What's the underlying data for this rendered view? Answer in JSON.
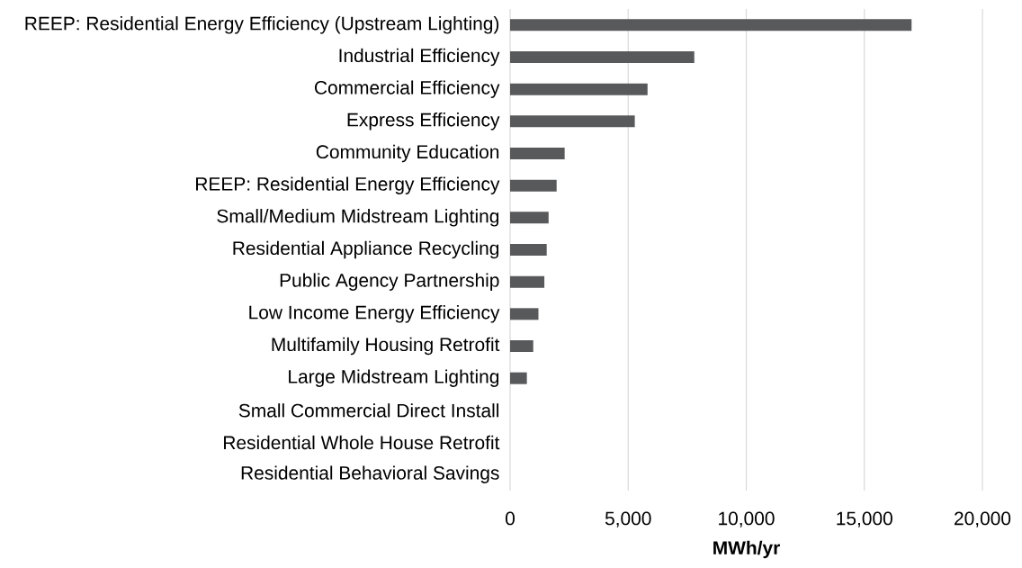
{
  "chart_data": {
    "type": "bar",
    "orientation": "horizontal",
    "xlabel": "MWh/yr",
    "categories": [
      "REEP: Residential Energy Efficiency (Upstream Lighting)",
      "Industrial Efficiency",
      "Commercial Efficiency",
      "Express Efficiency",
      "Community Education",
      "REEP: Residential Energy Efficiency",
      "Small/Medium Midstream Lighting",
      "Residential Appliance Recycling",
      "Public Agency Partnership",
      "Low Income Energy Efficiency",
      "Multifamily Housing Retrofit",
      "Large Midstream Lighting",
      "Small Commercial Direct Install",
      "Residential Whole House Retrofit",
      "Residential Behavioral Savings"
    ],
    "values": [
      17000,
      7800,
      5820,
      5280,
      2310,
      1970,
      1630,
      1550,
      1450,
      1200,
      980,
      710,
      0,
      0,
      0
    ],
    "color": "#58595b",
    "xlim": [
      0,
      20000
    ],
    "xticks": [
      0,
      {
        "value": 5000,
        "label": "5,000"
      },
      {
        "value": 10000,
        "label": "10,000"
      },
      {
        "value": 15000,
        "label": "15,000"
      },
      {
        "value": 20000,
        "label": "20,000"
      }
    ],
    "grid": "x"
  }
}
